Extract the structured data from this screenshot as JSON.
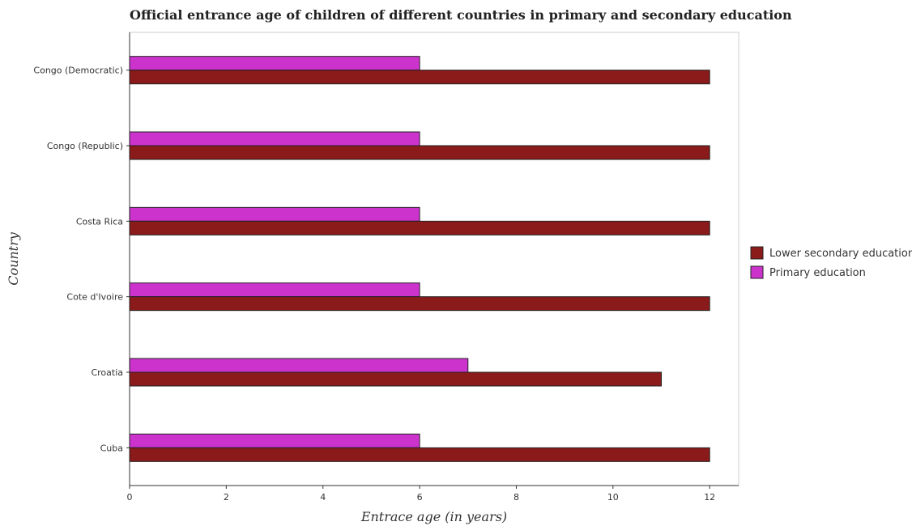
{
  "chart_data": {
    "type": "bar",
    "orientation": "horizontal",
    "title": "Official entrance age of children of different countries in primary and secondary education",
    "xlabel": "Entrace age (in  years)",
    "ylabel": "Country",
    "categories": [
      "Congo (Democratic)",
      "Congo (Republic)",
      "Costa Rica",
      "Cote d'Ivoire",
      "Croatia",
      "Cuba"
    ],
    "series": [
      {
        "name": "Lower secondary education",
        "color": "#8b1a1a",
        "values": [
          12,
          12,
          12,
          12,
          11,
          12
        ]
      },
      {
        "name": "Primary education",
        "color": "#cc33cc",
        "values": [
          6,
          6,
          6,
          6,
          7,
          6
        ]
      }
    ],
    "xlim": [
      0,
      12.6
    ],
    "xticks": [
      0,
      2,
      4,
      6,
      8,
      10,
      12
    ],
    "xtick_labels": [
      "0",
      "2",
      "4",
      "6",
      "8",
      "10",
      "12"
    ],
    "grid": false,
    "legend_position": "right"
  }
}
